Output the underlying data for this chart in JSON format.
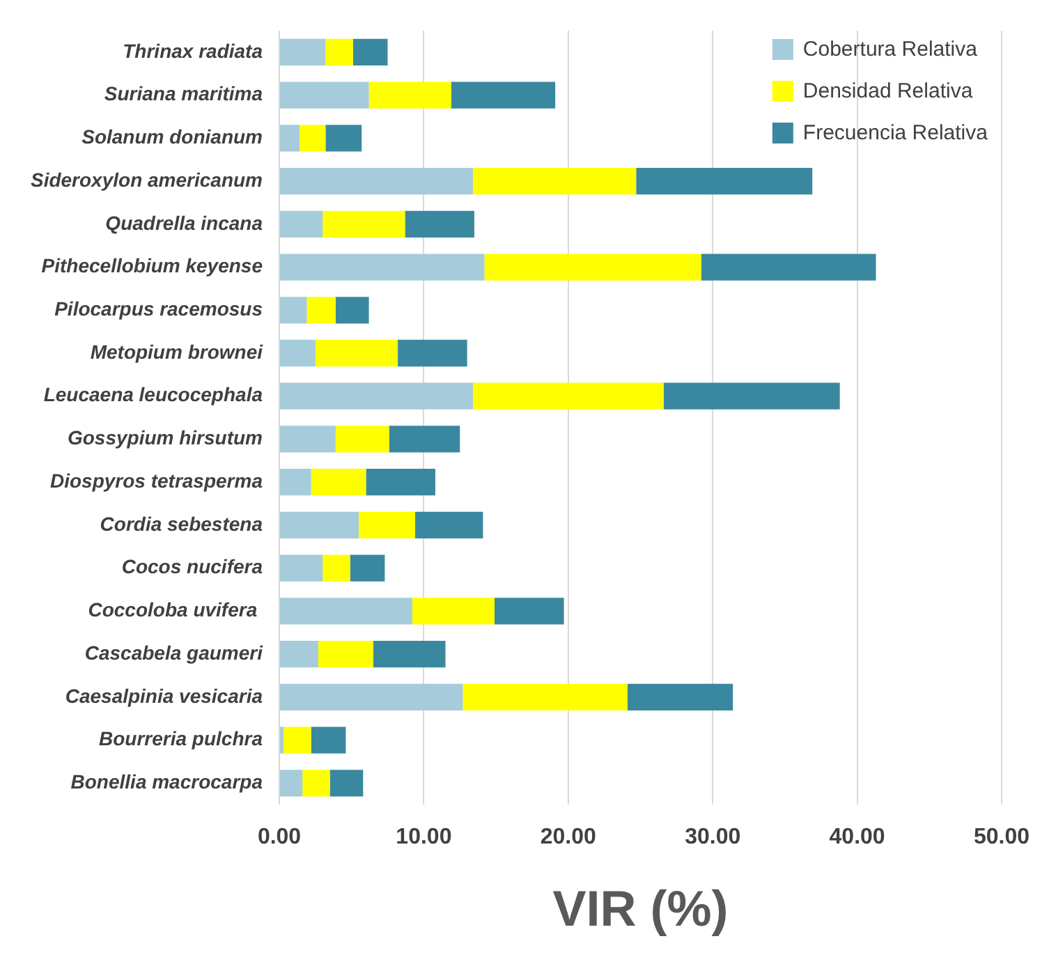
{
  "chart_data": {
    "type": "bar",
    "orientation": "horizontal",
    "stacked": true,
    "xlabel": "VIR (%)",
    "categories": [
      "Thrinax radiata",
      "Suriana maritima",
      "Solanum donianum",
      "Sideroxylon americanum",
      "Quadrella incana",
      "Pithecellobium keyense",
      "Pilocarpus racemosus",
      "Metopium brownei",
      "Leucaena leucocephala",
      "Gossypium hirsutum",
      "Diospyros tetrasperma",
      "Cordia sebestena",
      "Cocos nucifera",
      "Coccoloba uvifera ",
      "Cascabela gaumeri",
      "Caesalpinia vesicaria",
      "Bourreria pulchra",
      "Bonellia macrocarpa"
    ],
    "series": [
      {
        "name": "Cobertura Relativa",
        "color": "#a6cbdb",
        "values": [
          3.2,
          6.2,
          1.4,
          13.4,
          3.0,
          14.2,
          1.9,
          2.5,
          13.4,
          3.9,
          2.2,
          5.5,
          3.0,
          9.2,
          2.7,
          12.7,
          0.3,
          1.6
        ]
      },
      {
        "name": "Densidad Relativa",
        "color": "#ffff00",
        "values": [
          1.9,
          5.7,
          1.8,
          11.3,
          5.7,
          15.0,
          2.0,
          5.7,
          13.2,
          3.7,
          3.8,
          3.9,
          1.9,
          5.7,
          3.8,
          11.4,
          1.9,
          1.9
        ]
      },
      {
        "name": "Frecuencia Relativa",
        "color": "#3a88a0",
        "values": [
          2.4,
          7.2,
          2.5,
          12.2,
          4.8,
          12.1,
          2.3,
          4.8,
          12.2,
          4.9,
          4.8,
          4.7,
          2.4,
          4.8,
          5.0,
          7.3,
          2.4,
          2.3
        ]
      }
    ],
    "xlim": [
      0,
      50
    ],
    "xticks": [
      {
        "value": 0,
        "label": "0.00"
      },
      {
        "value": 10,
        "label": "10.00"
      },
      {
        "value": 20,
        "label": "20.00"
      },
      {
        "value": 30,
        "label": "30.00"
      },
      {
        "value": 40,
        "label": "40.00"
      },
      {
        "value": 50,
        "label": "50.00"
      }
    ],
    "grid": "x",
    "legend": "top right"
  }
}
